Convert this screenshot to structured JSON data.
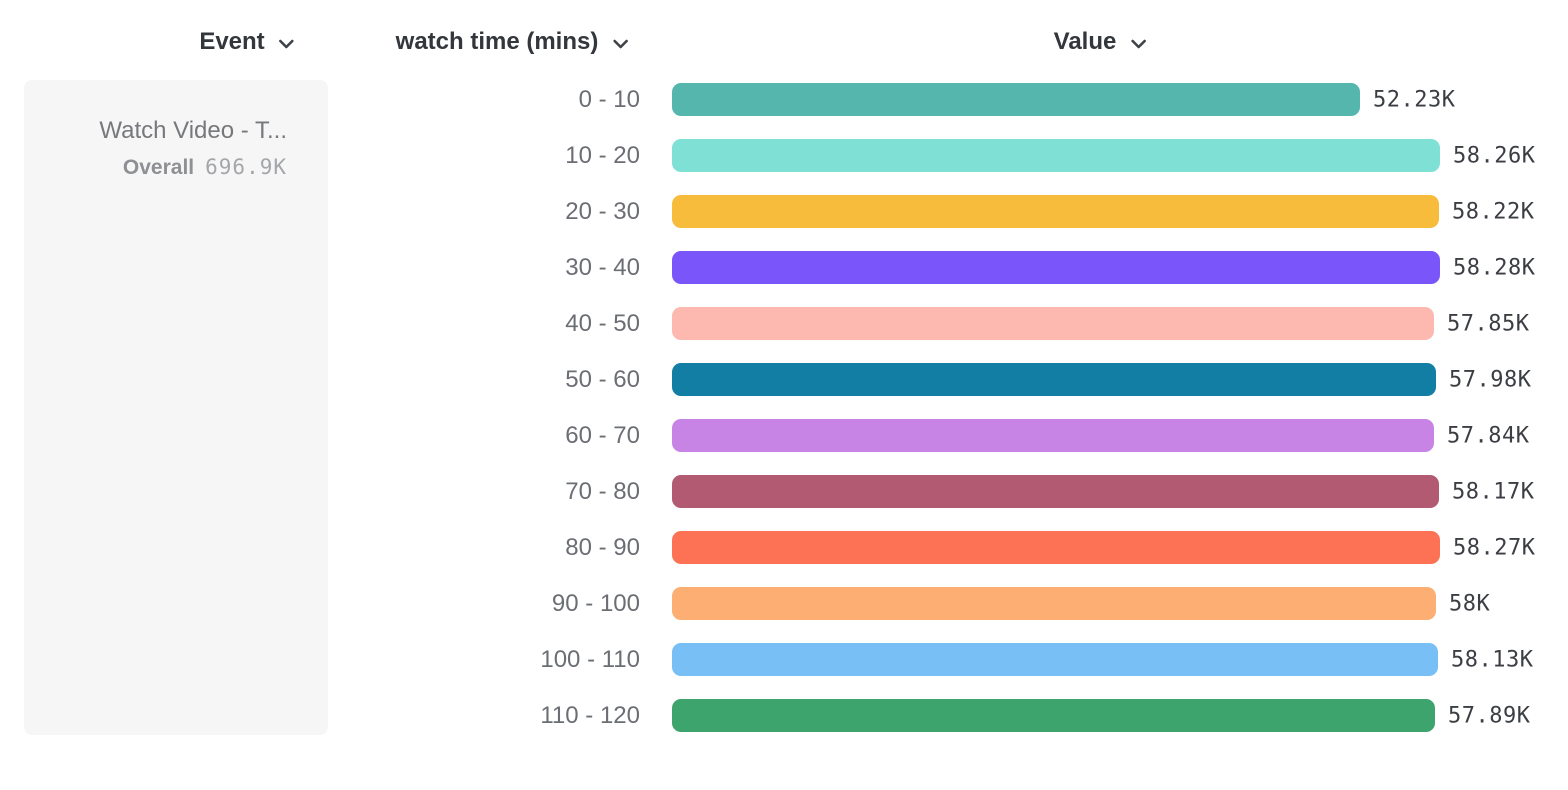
{
  "header": {
    "columns": [
      {
        "label": "Event",
        "icon": "chevron-down"
      },
      {
        "label": "watch time (mins)",
        "icon": "chevron-down"
      },
      {
        "label": "Value",
        "icon": "chevron-down"
      }
    ]
  },
  "event_card": {
    "title": "Watch Video - T...",
    "overall_label": "Overall",
    "overall_value": "696.9K"
  },
  "chart_data": {
    "type": "bar",
    "orientation": "horizontal",
    "title": "",
    "xlabel": "Value",
    "ylabel": "watch time (mins)",
    "categories": [
      "0 - 10",
      "10 - 20",
      "20 - 30",
      "30 - 40",
      "40 - 50",
      "50 - 60",
      "60 - 70",
      "70 - 80",
      "80 - 90",
      "90 - 100",
      "100 - 110",
      "110 - 120"
    ],
    "values": [
      52230,
      58260,
      58220,
      58280,
      57850,
      57980,
      57840,
      58170,
      58270,
      58000,
      58130,
      57890
    ],
    "value_labels": [
      "52.23K",
      "58.26K",
      "58.22K",
      "58.28K",
      "57.85K",
      "57.98K",
      "57.84K",
      "58.17K",
      "58.27K",
      "58K",
      "58.13K",
      "57.89K"
    ],
    "bar_colors": [
      "#55B6AD",
      "#7FE1D5",
      "#F8BC3D",
      "#7A55FA",
      "#FDB9B0",
      "#127EA3",
      "#C884E4",
      "#B15A71",
      "#FD7254",
      "#FDAE73",
      "#78BFF6",
      "#3DA46D"
    ],
    "xlim": [
      0,
      58280
    ],
    "grid": false,
    "legend": "none"
  }
}
